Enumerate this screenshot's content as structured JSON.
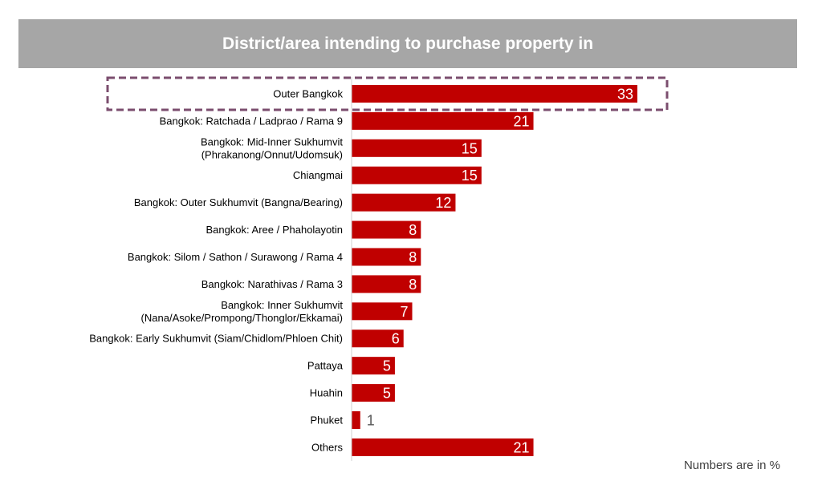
{
  "chart_data": {
    "type": "bar",
    "orientation": "horizontal",
    "title": "District/area intending to purchase property in",
    "categories": [
      [
        "Outer Bangkok"
      ],
      [
        "Bangkok: Ratchada / Ladprao / Rama 9"
      ],
      [
        "Bangkok: Mid-Inner Sukhumvit",
        "(Phrakanong/Onnut/Udomsuk)"
      ],
      [
        "Chiangmai"
      ],
      [
        "Bangkok: Outer Sukhumvit (Bangna/Bearing)"
      ],
      [
        "Bangkok: Aree / Phaholayotin"
      ],
      [
        "Bangkok: Silom / Sathon / Surawong / Rama 4"
      ],
      [
        "Bangkok: Narathivas / Rama 3"
      ],
      [
        "Bangkok: Inner Sukhumvit",
        "(Nana/Asoke/Prompong/Thonglor/Ekkamai)"
      ],
      [
        "Bangkok: Early Sukhumvit (Siam/Chidlom/Phloen Chit)"
      ],
      [
        "Pattaya"
      ],
      [
        "Huahin"
      ],
      [
        "Phuket"
      ],
      [
        "Others"
      ]
    ],
    "values": [
      33,
      21,
      15,
      15,
      12,
      8,
      8,
      8,
      7,
      6,
      5,
      5,
      1,
      21
    ],
    "highlighted_category": "Outer Bangkok",
    "xlim": [
      0,
      33
    ],
    "grid": false,
    "legend": "none",
    "footnote": "Numbers are in %",
    "colors": {
      "bar": "#c00000",
      "title_bg": "#a6a6a6",
      "title_text": "#ffffff",
      "highlight_border": "#7b4d6e",
      "value_inside": "#ffffff",
      "value_outside": "#595959"
    }
  }
}
